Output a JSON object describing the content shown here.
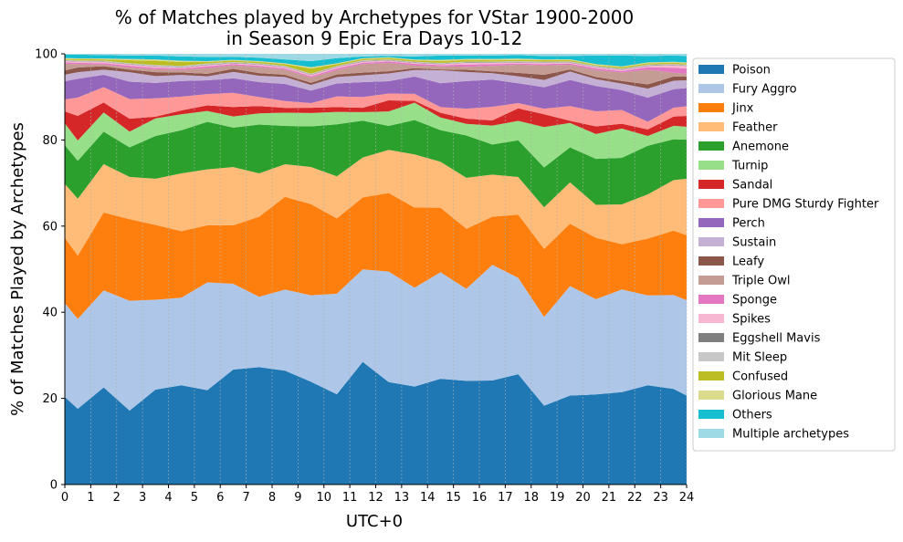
{
  "chart_data": {
    "type": "area",
    "title": "% of Matches played by Archetypes for VStar 1900-2000\nin Season 9 Epic Era Days 10-12",
    "xlabel": "UTC+0",
    "ylabel": "% of Matches Played by Archetypes",
    "xlim": [
      0,
      24
    ],
    "ylim": [
      0,
      100
    ],
    "xticks": [
      0,
      1,
      2,
      3,
      4,
      5,
      6,
      7,
      8,
      9,
      10,
      11,
      12,
      13,
      14,
      15,
      16,
      17,
      18,
      19,
      20,
      21,
      22,
      23,
      24
    ],
    "yticks": [
      0,
      20,
      40,
      60,
      80,
      100
    ],
    "grid": "vertical dashed",
    "legend_position": "right",
    "x": [
      0,
      0.5,
      1.5,
      2.5,
      3.5,
      4.5,
      5.5,
      6.5,
      7.5,
      8.5,
      9.5,
      10.5,
      11.5,
      12.5,
      13.5,
      14.5,
      15.5,
      16.5,
      17.5,
      18.5,
      19.5,
      20.5,
      21.5,
      22.5,
      23.5,
      24
    ],
    "series": [
      {
        "name": "Poison",
        "color": "#1f77b4",
        "values": [
          20.5,
          18.2,
          22.7,
          17.3,
          22.2,
          23.0,
          21.8,
          26.8,
          27.4,
          26.5,
          23.8,
          21.0,
          28.6,
          24.0,
          22.5,
          24.4,
          24.0,
          24.2,
          25.5,
          18.4,
          21.1,
          21.0,
          21.4,
          23.1,
          22.7,
          20.5
        ]
      },
      {
        "name": "Fury Aggro",
        "color": "#aec7e8",
        "values": [
          22.0,
          21.6,
          22.7,
          25.7,
          21.0,
          20.3,
          24.9,
          20.0,
          16.4,
          18.9,
          20.0,
          23.4,
          21.6,
          25.9,
          22.7,
          24.6,
          21.3,
          26.9,
          22.3,
          20.7,
          26.0,
          22.2,
          23.8,
          20.9,
          22.3,
          22.0
        ]
      },
      {
        "name": "Jinx",
        "color": "#ff7f0e",
        "values": [
          15.3,
          15.2,
          18.2,
          19.1,
          17.5,
          15.4,
          13.2,
          13.6,
          18.7,
          21.6,
          21.1,
          17.5,
          16.8,
          18.4,
          18.4,
          14.9,
          13.9,
          11.2,
          14.6,
          15.9,
          14.8,
          14.3,
          10.5,
          13.2,
          15.3,
          15.0
        ]
      },
      {
        "name": "Feather",
        "color": "#ffbb78",
        "values": [
          12.6,
          13.7,
          11.3,
          9.9,
          10.8,
          13.4,
          12.9,
          13.6,
          10.1,
          7.6,
          8.6,
          9.8,
          9.3,
          10.1,
          12.2,
          10.6,
          11.8,
          9.8,
          8.7,
          9.7,
          9.8,
          7.7,
          9.2,
          10.3,
          12.0,
          13.0
        ]
      },
      {
        "name": "Anemone",
        "color": "#2ca02c",
        "values": [
          9.1,
          9.1,
          7.6,
          6.9,
          10.0,
          10.0,
          11.0,
          9.2,
          11.4,
          8.9,
          9.4,
          12.1,
          8.6,
          5.6,
          7.9,
          7.3,
          9.8,
          7.0,
          8.5,
          9.3,
          8.3,
          10.7,
          10.8,
          11.3,
          9.7,
          9.0
        ]
      },
      {
        "name": "Turnip",
        "color": "#98df8a",
        "values": [
          5.1,
          4.9,
          4.5,
          3.7,
          4.1,
          3.7,
          2.5,
          2.6,
          2.6,
          3.1,
          3.1,
          2.9,
          2.0,
          3.4,
          4.0,
          2.9,
          2.7,
          4.4,
          4.5,
          9.4,
          5.8,
          5.8,
          6.8,
          2.3,
          3.2,
          3.0
        ]
      },
      {
        "name": "Sandal",
        "color": "#d62728",
        "values": [
          2.8,
          5.9,
          2.3,
          3.0,
          0.4,
          0.9,
          1.3,
          2.2,
          1.7,
          1.1,
          1.2,
          1.1,
          1.0,
          2.6,
          0.4,
          1.1,
          1.2,
          1.2,
          2.9,
          3.0,
          0.5,
          1.8,
          1.1,
          1.5,
          2.2,
          2.5
        ]
      },
      {
        "name": "Pure DMG Sturdy Fighter",
        "color": "#ff9896",
        "values": [
          2.8,
          4.4,
          3.6,
          4.6,
          4.3,
          3.2,
          2.6,
          3.3,
          2.1,
          1.6,
          1.1,
          2.5,
          2.5,
          1.6,
          1.6,
          1.3,
          2.3,
          3.2,
          1.2,
          1.3,
          3.5,
          3.5,
          3.2,
          1.8,
          2.1,
          2.2
        ]
      },
      {
        "name": "Perch",
        "color": "#9467bd",
        "values": [
          4.3,
          4.5,
          2.9,
          4.1,
          3.6,
          3.6,
          3.2,
          3.4,
          3.5,
          4.0,
          2.9,
          3.0,
          3.5,
          2.9,
          4.0,
          5.5,
          6.4,
          6.3,
          4.6,
          5.0,
          6.2,
          5.9,
          4.6,
          5.6,
          4.4,
          4.2
        ]
      },
      {
        "name": "Sustain",
        "color": "#c5b0d5",
        "values": [
          1.5,
          1.6,
          1.2,
          2.2,
          1.6,
          1.4,
          0.9,
          1.5,
          1.5,
          1.6,
          1.3,
          1.5,
          1.6,
          1.8,
          1.5,
          3.0,
          2.1,
          1.5,
          1.6,
          1.7,
          2.0,
          1.6,
          1.5,
          2.1,
          2.0,
          1.8
        ]
      },
      {
        "name": "Leafy",
        "color": "#8c564b",
        "values": [
          1.0,
          1.1,
          0.8,
          0.6,
          0.9,
          0.6,
          0.6,
          0.7,
          0.6,
          0.5,
          0.5,
          0.6,
          0.6,
          0.5,
          0.4,
          0.2,
          0.5,
          0.4,
          0.8,
          1.2,
          0.5,
          0.5,
          0.6,
          1.0,
          1.0,
          0.9
        ]
      },
      {
        "name": "Triple Owl",
        "color": "#c49c94",
        "values": [
          1.6,
          0.8,
          0.4,
          0.5,
          0.7,
          0.6,
          1.3,
          0.8,
          1.4,
          1.2,
          1.2,
          1.0,
          2.0,
          2.0,
          0.6,
          0.7,
          0.7,
          1.3,
          1.9,
          2.2,
          1.1,
          1.6,
          2.0,
          3.4,
          0.9,
          0.6
        ]
      },
      {
        "name": "Sponge",
        "color": "#e377c2",
        "values": [
          0.3,
          0.3,
          0.3,
          0.4,
          0.3,
          0.3,
          0.4,
          0.3,
          0.3,
          0.3,
          0.3,
          0.4,
          0.3,
          0.3,
          0.4,
          0.3,
          0.5,
          0.4,
          0.2,
          0.3,
          0.3,
          0.4,
          0.3,
          0.6,
          1.2,
          1.2
        ]
      },
      {
        "name": "Spikes",
        "color": "#f7b6d2",
        "values": [
          0.3,
          0.3,
          0.3,
          0.3,
          0.3,
          0.2,
          0.3,
          0.2,
          0.3,
          0.3,
          0.3,
          0.3,
          0.3,
          0.2,
          0.2,
          0.2,
          0.4,
          0.3,
          0.3,
          0.3,
          0.2,
          0.3,
          0.3,
          0.3,
          0.6,
          0.6
        ]
      },
      {
        "name": "Eggshell Mavis",
        "color": "#7f7f7f",
        "values": [
          0.1,
          0.1,
          0.1,
          0.1,
          0.1,
          0.1,
          0.1,
          0.1,
          0.1,
          0.1,
          0.1,
          0.1,
          0.1,
          0.1,
          0.1,
          0.1,
          0.1,
          0.1,
          0.1,
          0.1,
          0.1,
          0.1,
          0.1,
          0.1,
          0.1,
          0.1
        ]
      },
      {
        "name": "Mit Sleep",
        "color": "#c7c7c7",
        "values": [
          0.2,
          0.2,
          0.2,
          0.2,
          0.3,
          0.3,
          0.3,
          0.2,
          0.2,
          0.2,
          0.2,
          0.2,
          0.2,
          0.2,
          0.2,
          0.2,
          0.2,
          0.2,
          0.2,
          0.2,
          0.2,
          0.2,
          0.2,
          0.2,
          0.2,
          0.2
        ]
      },
      {
        "name": "Confused",
        "color": "#bcbd22",
        "values": [
          0.2,
          0.3,
          0.3,
          0.7,
          1.0,
          0.9,
          0.3,
          0.3,
          0.3,
          0.4,
          1.2,
          0.4,
          0.3,
          0.3,
          0.3,
          0.4,
          0.4,
          0.3,
          0.3,
          0.3,
          0.3,
          0.2,
          0.3,
          0.3,
          0.3,
          0.3
        ]
      },
      {
        "name": "Glorious Mane",
        "color": "#dbdb8d",
        "values": [
          0.2,
          0.2,
          0.2,
          0.3,
          0.3,
          0.3,
          0.2,
          0.2,
          0.2,
          0.2,
          0.3,
          0.2,
          0.2,
          0.2,
          0.2,
          0.3,
          0.2,
          0.3,
          0.3,
          0.2,
          0.2,
          0.2,
          0.2,
          0.2,
          0.2,
          0.2
        ]
      },
      {
        "name": "Others",
        "color": "#17becf",
        "values": [
          0.8,
          0.9,
          0.8,
          0.8,
          0.9,
          1.0,
          1.0,
          0.7,
          0.8,
          0.9,
          1.4,
          1.2,
          0.4,
          0.3,
          0.7,
          1.0,
          0.8,
          0.8,
          0.8,
          0.8,
          0.8,
          2.0,
          2.5,
          1.5,
          1.5,
          1.5
        ]
      },
      {
        "name": "Multiple archetypes",
        "color": "#9edae5",
        "values": [
          0.2,
          0.2,
          0.3,
          0.4,
          0.4,
          0.6,
          0.7,
          0.7,
          0.9,
          1.3,
          1.7,
          1.0,
          0.6,
          0.5,
          0.6,
          0.4,
          0.4,
          0.4,
          0.3,
          0.5,
          0.5,
          0.4,
          0.4,
          0.5,
          0.4,
          0.5
        ]
      }
    ]
  }
}
